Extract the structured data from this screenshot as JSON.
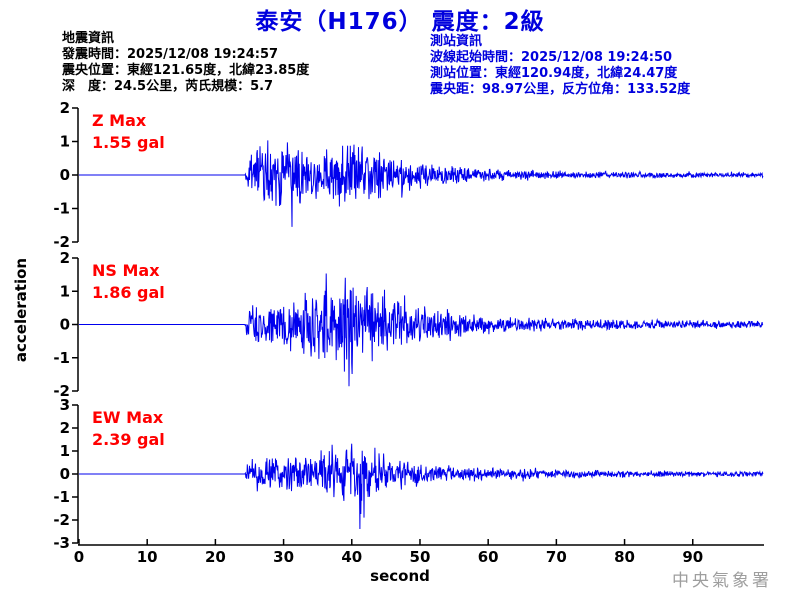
{
  "title": "泰安（H176） 震度：2級",
  "earthquake_info": {
    "heading": "地震資訊",
    "lines": [
      "發震時間：2025/12/08 19:24:57",
      "震央位置：東經121.65度，北緯23.85度",
      "深　度：24.5公里，芮氏規模：5.7"
    ]
  },
  "station_info": {
    "heading": "測站資訊",
    "lines": [
      "波線起始時間：2025/12/08 19:24:50",
      "測站位置：東經120.94度，北緯24.47度",
      "震央距：98.97公里，反方位角：133.52度"
    ]
  },
  "watermark": "中央氣象署",
  "colors": {
    "title_blue": "#0000dd",
    "station_info_blue": "#0000dd",
    "earthquake_info_black": "#000000",
    "max_label_red": "#ff0000",
    "trace_blue": "#0000ee",
    "axis_black": "#000000",
    "watermark_gray": "#9e9e9e",
    "background": "#ffffff"
  },
  "chart_data": {
    "type": "line",
    "title": "泰安（H176） 震度：2級",
    "xlabel": "second",
    "ylabel": "acceleration",
    "x_range": [
      0,
      100.3
    ],
    "xticks": [
      0,
      10,
      20,
      30,
      40,
      50,
      60,
      70,
      80,
      90
    ],
    "grid": false,
    "legend": "none",
    "panels": [
      {
        "name": "Z",
        "max_label": "Z Max",
        "max_value": "1.55 gal",
        "max_gal": 1.55,
        "ylim": [
          -2,
          2
        ],
        "yticks": [
          2,
          1,
          0,
          -1,
          -2
        ],
        "onset_s": 24.4,
        "peak_t": 31.2,
        "peak_gal": -1.55,
        "seed": 11,
        "envelope": [
          [
            0,
            0
          ],
          [
            24.3,
            0
          ],
          [
            24.7,
            0.55
          ],
          [
            25.5,
            1.15
          ],
          [
            27,
            1.3
          ],
          [
            29,
            1.15
          ],
          [
            31,
            1.25
          ],
          [
            33,
            0.95
          ],
          [
            35,
            0.9
          ],
          [
            37,
            1.0
          ],
          [
            39,
            1.25
          ],
          [
            41,
            1.15
          ],
          [
            43,
            0.85
          ],
          [
            46,
            0.6
          ],
          [
            49,
            0.45
          ],
          [
            52,
            0.35
          ],
          [
            56,
            0.27
          ],
          [
            60,
            0.2
          ],
          [
            66,
            0.16
          ],
          [
            74,
            0.13
          ],
          [
            84,
            0.1
          ],
          [
            100,
            0.08
          ]
        ]
      },
      {
        "name": "NS",
        "max_label": "NS Max",
        "max_value": "1.86 gal",
        "max_gal": 1.86,
        "ylim": [
          -2,
          2
        ],
        "yticks": [
          2,
          1,
          0,
          -1,
          -2
        ],
        "onset_s": 24.4,
        "peak_t": 39.6,
        "peak_gal": -1.86,
        "seed": 23,
        "envelope": [
          [
            0,
            0
          ],
          [
            24.3,
            0
          ],
          [
            24.7,
            0.5
          ],
          [
            26,
            0.65
          ],
          [
            28,
            0.75
          ],
          [
            30,
            0.8
          ],
          [
            32,
            0.95
          ],
          [
            34,
            1.2
          ],
          [
            36,
            1.5
          ],
          [
            38,
            1.75
          ],
          [
            40,
            1.6
          ],
          [
            42,
            1.25
          ],
          [
            44,
            1.0
          ],
          [
            47,
            0.75
          ],
          [
            50,
            0.6
          ],
          [
            54,
            0.45
          ],
          [
            58,
            0.35
          ],
          [
            63,
            0.28
          ],
          [
            70,
            0.22
          ],
          [
            80,
            0.17
          ],
          [
            90,
            0.14
          ],
          [
            100,
            0.12
          ]
        ]
      },
      {
        "name": "EW",
        "max_label": "EW Max",
        "max_value": "2.39 gal",
        "max_gal": 2.39,
        "ylim": [
          -3,
          3
        ],
        "yticks": [
          3,
          2,
          1,
          0,
          -1,
          -2,
          -3
        ],
        "onset_s": 24.4,
        "peak_t": 41.2,
        "peak_gal": -2.39,
        "seed": 37,
        "envelope": [
          [
            0,
            0
          ],
          [
            24.3,
            0
          ],
          [
            24.7,
            0.6
          ],
          [
            26,
            0.8
          ],
          [
            28,
            0.9
          ],
          [
            31,
            0.85
          ],
          [
            33,
            0.9
          ],
          [
            35,
            1.25
          ],
          [
            37,
            1.5
          ],
          [
            39,
            1.4
          ],
          [
            41,
            1.55
          ],
          [
            43,
            1.05
          ],
          [
            45,
            0.9
          ],
          [
            48,
            0.7
          ],
          [
            51,
            0.55
          ],
          [
            55,
            0.42
          ],
          [
            59,
            0.33
          ],
          [
            64,
            0.27
          ],
          [
            70,
            0.22
          ],
          [
            78,
            0.18
          ],
          [
            88,
            0.15
          ],
          [
            100,
            0.12
          ]
        ]
      }
    ]
  }
}
